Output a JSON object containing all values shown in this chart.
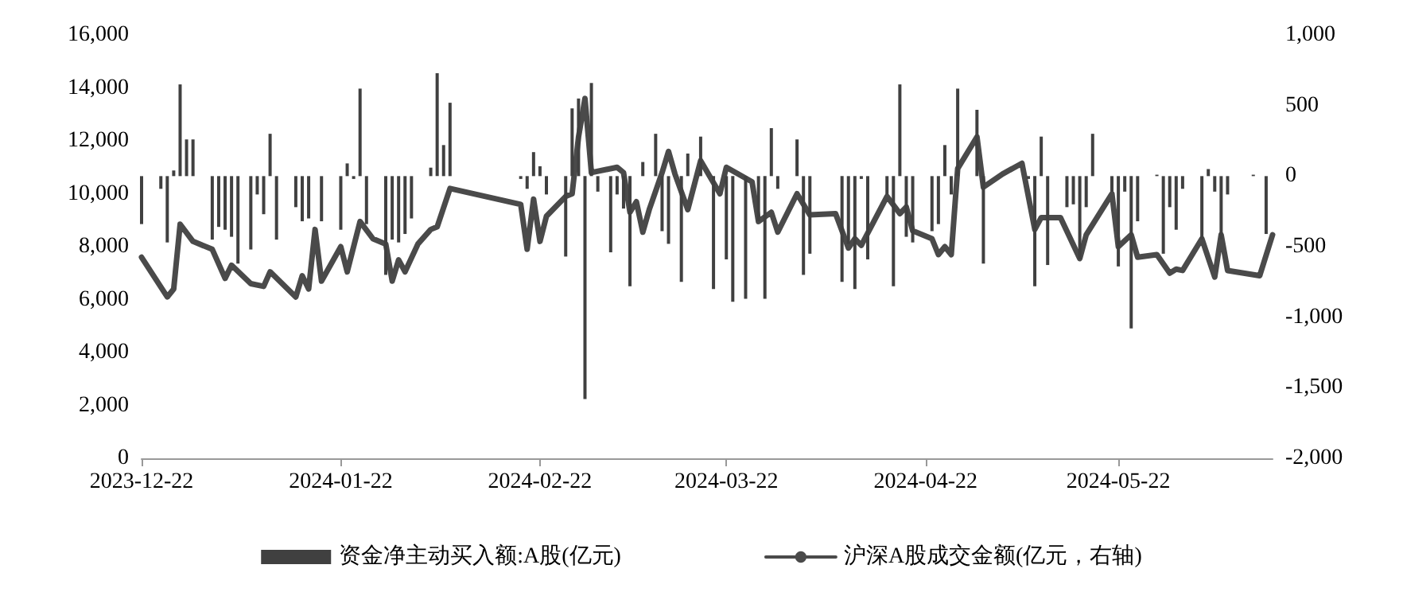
{
  "chart_data": {
    "type": "line",
    "xlim": [
      "2023-12-22",
      "2024-06-15"
    ],
    "xticks": [
      "2023-12-22",
      "2024-01-22",
      "2024-02-22",
      "2024-03-22",
      "2024-04-22",
      "2024-05-22"
    ],
    "ylim": [
      0,
      16000
    ],
    "yticks": [
      {
        "value": 0,
        "label": "0"
      },
      {
        "value": 2000,
        "label": "2,000"
      },
      {
        "value": 4000,
        "label": "4,000"
      },
      {
        "value": 6000,
        "label": "6,000"
      },
      {
        "value": 8000,
        "label": "8,000"
      },
      {
        "value": 10000,
        "label": "10,000"
      },
      {
        "value": 12000,
        "label": "12,000"
      },
      {
        "value": 14000,
        "label": "14,000"
      },
      {
        "value": 16000,
        "label": "16,000"
      }
    ],
    "y2lim": [
      -2000,
      1000
    ],
    "y2ticks": [
      {
        "value": -2000,
        "label": "-2,000"
      },
      {
        "value": -1500,
        "label": "-1,500"
      },
      {
        "value": -1000,
        "label": "-1,000"
      },
      {
        "value": -500,
        "label": "-500"
      },
      {
        "value": 0,
        "label": "0"
      },
      {
        "value": 500,
        "label": "500"
      },
      {
        "value": 1000,
        "label": "1,000"
      }
    ],
    "legend": "bottom",
    "marker": "none",
    "line_style": "solid",
    "series": [
      {
        "name": "资金净主动买入额:A股(亿元)",
        "type": "bar",
        "axis": "y2",
        "color": "#404040",
        "x": [
          "2023-12-22",
          "2023-12-25",
          "2023-12-26",
          "2023-12-27",
          "2023-12-28",
          "2023-12-29",
          "2023-12-30",
          "2024-01-02",
          "2024-01-03",
          "2024-01-04",
          "2024-01-05",
          "2024-01-06",
          "2024-01-08",
          "2024-01-09",
          "2024-01-10",
          "2024-01-11",
          "2024-01-12",
          "2024-01-15",
          "2024-01-16",
          "2024-01-17",
          "2024-01-19",
          "2024-01-22",
          "2024-01-23",
          "2024-01-24",
          "2024-01-25",
          "2024-01-26",
          "2024-01-29",
          "2024-01-30",
          "2024-01-31",
          "2024-02-01",
          "2024-02-02",
          "2024-02-05",
          "2024-02-06",
          "2024-02-07",
          "2024-02-08",
          "2024-02-19",
          "2024-02-20",
          "2024-02-21",
          "2024-02-22",
          "2024-02-23",
          "2024-02-26",
          "2024-02-27",
          "2024-02-28",
          "2024-02-29",
          "2024-03-01",
          "2024-03-02",
          "2024-03-04",
          "2024-03-05",
          "2024-03-06",
          "2024-03-07",
          "2024-03-09",
          "2024-03-11",
          "2024-03-12",
          "2024-03-13",
          "2024-03-15",
          "2024-03-16",
          "2024-03-18",
          "2024-03-20",
          "2024-03-22",
          "2024-03-23",
          "2024-03-25",
          "2024-03-27",
          "2024-03-28",
          "2024-03-29",
          "2024-03-30",
          "2024-04-02",
          "2024-04-03",
          "2024-04-04",
          "2024-04-09",
          "2024-04-10",
          "2024-04-11",
          "2024-04-12",
          "2024-04-13",
          "2024-04-16",
          "2024-04-17",
          "2024-04-18",
          "2024-04-19",
          "2024-04-20",
          "2024-04-23",
          "2024-04-24",
          "2024-04-25",
          "2024-04-26",
          "2024-04-27",
          "2024-04-30",
          "2024-05-01",
          "2024-05-08",
          "2024-05-09",
          "2024-05-10",
          "2024-05-11",
          "2024-05-14",
          "2024-05-15",
          "2024-05-16",
          "2024-05-17",
          "2024-05-18",
          "2024-05-21",
          "2024-05-22",
          "2024-05-23",
          "2024-05-24",
          "2024-05-25",
          "2024-05-28",
          "2024-05-29",
          "2024-05-30",
          "2024-05-31",
          "2024-06-01",
          "2024-06-04",
          "2024-06-05",
          "2024-06-06",
          "2024-06-07",
          "2024-06-08",
          "2024-06-12",
          "2024-06-14"
        ],
        "values": [
          -340,
          -90,
          -470,
          40,
          650,
          260,
          260,
          -450,
          -360,
          -380,
          -430,
          -620,
          -520,
          -130,
          -270,
          300,
          -450,
          -220,
          -320,
          -300,
          -320,
          -380,
          90,
          -20,
          620,
          -340,
          -700,
          -450,
          -470,
          -410,
          -300,
          60,
          730,
          220,
          520,
          -20,
          -90,
          170,
          70,
          -130,
          -570,
          480,
          550,
          -1580,
          660,
          -110,
          -540,
          -130,
          -230,
          -780,
          100,
          300,
          -390,
          -480,
          -750,
          160,
          280,
          -800,
          -590,
          -890,
          -870,
          -320,
          -870,
          340,
          -90,
          260,
          -700,
          -550,
          -750,
          -480,
          -800,
          -20,
          -590,
          -130,
          -780,
          650,
          -430,
          -470,
          -390,
          -340,
          220,
          -130,
          620,
          470,
          -620,
          -20,
          -780,
          280,
          -630,
          -220,
          -200,
          -590,
          -220,
          300,
          -110,
          -640,
          -110,
          -1080,
          -320,
          10,
          -550,
          -220,
          -380,
          -90,
          -450,
          50,
          -110,
          -450,
          -130,
          10,
          -410
        ]
      },
      {
        "name": "沪深A股成交金额(亿元，右轴)",
        "color": "#4a4a4a",
        "x": [
          "2023-12-22",
          "2023-12-26",
          "2023-12-27",
          "2023-12-28",
          "2023-12-30",
          "2024-01-02",
          "2024-01-04",
          "2024-01-05",
          "2024-01-08",
          "2024-01-10",
          "2024-01-11",
          "2024-01-15",
          "2024-01-16",
          "2024-01-17",
          "2024-01-18",
          "2024-01-19",
          "2024-01-22",
          "2024-01-23",
          "2024-01-25",
          "2024-01-27",
          "2024-01-29",
          "2024-01-30",
          "2024-01-31",
          "2024-02-01",
          "2024-02-03",
          "2024-02-05",
          "2024-02-06",
          "2024-02-08",
          "2024-02-19",
          "2024-02-20",
          "2024-02-21",
          "2024-02-22",
          "2024-02-23",
          "2024-02-26",
          "2024-02-27",
          "2024-02-28",
          "2024-02-29",
          "2024-03-01",
          "2024-03-05",
          "2024-03-06",
          "2024-03-07",
          "2024-03-08",
          "2024-03-09",
          "2024-03-10",
          "2024-03-12",
          "2024-03-13",
          "2024-03-14",
          "2024-03-16",
          "2024-03-18",
          "2024-03-21",
          "2024-03-22",
          "2024-03-26",
          "2024-03-27",
          "2024-03-29",
          "2024-03-30",
          "2024-04-02",
          "2024-04-04",
          "2024-04-08",
          "2024-04-10",
          "2024-04-11",
          "2024-04-12",
          "2024-04-16",
          "2024-04-18",
          "2024-04-19",
          "2024-04-20",
          "2024-04-23",
          "2024-04-24",
          "2024-04-25",
          "2024-04-26",
          "2024-04-27",
          "2024-04-30",
          "2024-05-01",
          "2024-05-04",
          "2024-05-07",
          "2024-05-09",
          "2024-05-10",
          "2024-05-13",
          "2024-05-16",
          "2024-05-17",
          "2024-05-21",
          "2024-05-22",
          "2024-05-24",
          "2024-05-25",
          "2024-05-28",
          "2024-05-30",
          "2024-05-31",
          "2024-06-01",
          "2024-06-04",
          "2024-06-06",
          "2024-06-07",
          "2024-06-08",
          "2024-06-13",
          "2024-06-15"
        ],
        "values": [
          7600,
          6100,
          6400,
          8850,
          8200,
          7900,
          6800,
          7300,
          6600,
          6500,
          7050,
          6100,
          6900,
          6400,
          8650,
          6700,
          8000,
          7050,
          8950,
          8300,
          8100,
          6700,
          7500,
          7050,
          8100,
          8650,
          8750,
          10200,
          9600,
          7900,
          9800,
          8200,
          9150,
          9900,
          10000,
          12150,
          13600,
          10800,
          11000,
          10800,
          9300,
          9700,
          8550,
          9400,
          10800,
          11600,
          10750,
          9400,
          11250,
          10000,
          11000,
          10450,
          8950,
          9300,
          8550,
          10000,
          9200,
          9250,
          7950,
          8300,
          8050,
          9900,
          9250,
          9500,
          8600,
          8300,
          7700,
          8000,
          7700,
          10950,
          12150,
          10250,
          10750,
          11150,
          8650,
          9100,
          9100,
          7550,
          8450,
          10000,
          8000,
          8450,
          7600,
          7700,
          7000,
          7150,
          7100,
          8300,
          6850,
          8450,
          7100,
          6900,
          8450
        ]
      }
    ]
  }
}
